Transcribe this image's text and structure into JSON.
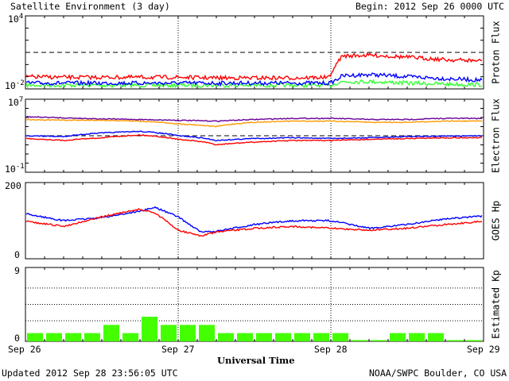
{
  "header": {
    "title": "Satellite Environment (3 day)",
    "begin": "Begin:  2012 Sep 26 0000 UTC"
  },
  "footer": {
    "updated": "Updated 2012 Sep 28 23:56:05 UTC",
    "credit": "NOAA/SWPC Boulder, CO USA"
  },
  "colors": {
    "red": "#ff0000",
    "blue": "#0000ff",
    "green": "#33ff33",
    "orange": "#ff9900",
    "purple": "#660099",
    "bar": "#44ff00"
  },
  "chart_data": [
    {
      "type": "line",
      "ylabel": "Proton Flux",
      "scale": "log",
      "ylim": [
        0.01,
        10000
      ],
      "ytick_labels": {
        "top_base": "10",
        "top_exp": "4",
        "bottom_base": "10",
        "bottom_exp": "-2"
      },
      "x_days": [
        0,
        0.25,
        0.5,
        0.75,
        1.0,
        1.25,
        1.5,
        1.75,
        2.0,
        2.04,
        2.08,
        2.25,
        2.5,
        2.75,
        3.0
      ],
      "series": [
        {
          "color": "red",
          "values": [
            0.1,
            0.09,
            0.09,
            0.09,
            0.09,
            0.08,
            0.08,
            0.08,
            0.09,
            1.0,
            5.0,
            6.0,
            4.0,
            2.5,
            2.0
          ]
        },
        {
          "color": "blue",
          "values": [
            0.03,
            0.03,
            0.03,
            0.03,
            0.03,
            0.03,
            0.03,
            0.03,
            0.03,
            0.06,
            0.12,
            0.15,
            0.1,
            0.07,
            0.05
          ]
        },
        {
          "color": "green",
          "values": [
            0.02,
            0.02,
            0.02,
            0.02,
            0.02,
            0.02,
            0.02,
            0.02,
            0.02,
            0.03,
            0.04,
            0.04,
            0.03,
            0.025,
            0.022
          ]
        }
      ],
      "threshold": 10
    },
    {
      "type": "line",
      "ylabel": "Electron Flux",
      "scale": "log",
      "ylim": [
        0.1,
        10000000
      ],
      "ytick_labels": {
        "top_base": "10",
        "top_exp": "7",
        "bottom_base": "10",
        "bottom_exp": "-1"
      },
      "x_days": [
        0,
        0.25,
        0.5,
        0.75,
        1.0,
        1.25,
        1.5,
        1.75,
        2.0,
        2.25,
        2.5,
        2.75,
        3.0
      ],
      "series": [
        {
          "color": "purple",
          "values": [
            120000,
            90000,
            70000,
            60000,
            50000,
            40000,
            60000,
            80000,
            80000,
            60000,
            60000,
            80000,
            80000
          ]
        },
        {
          "color": "orange",
          "values": [
            60000,
            50000,
            50000,
            40000,
            20000,
            10000,
            30000,
            40000,
            40000,
            30000,
            30000,
            40000,
            40000
          ]
        },
        {
          "color": "blue",
          "values": [
            1000,
            800,
            2000,
            3000,
            1000,
            300,
            500,
            600,
            500,
            600,
            800,
            900,
            1000
          ]
        },
        {
          "color": "red",
          "values": [
            500,
            300,
            600,
            1200,
            400,
            100,
            200,
            300,
            300,
            400,
            500,
            600,
            600
          ]
        }
      ],
      "threshold": 1000
    },
    {
      "type": "line",
      "ylabel": "GOES Hp",
      "ylim": [
        0,
        200
      ],
      "ytick_labels": {
        "top": "200",
        "bottom": "0"
      },
      "x_days": [
        0,
        0.25,
        0.5,
        0.75,
        0.85,
        1.0,
        1.15,
        1.25,
        1.5,
        1.75,
        2.0,
        2.25,
        2.5,
        2.75,
        3.0
      ],
      "series": [
        {
          "color": "blue",
          "values": [
            118,
            100,
            108,
            125,
            135,
            110,
            70,
            72,
            90,
            100,
            100,
            80,
            90,
            105,
            112
          ]
        },
        {
          "color": "red",
          "values": [
            98,
            85,
            110,
            130,
            120,
            75,
            60,
            70,
            80,
            85,
            80,
            75,
            80,
            90,
            98
          ]
        }
      ]
    },
    {
      "type": "bar",
      "ylabel": "Estimated Kp",
      "ylim": [
        0,
        9
      ],
      "ytick_labels": {
        "top": "9",
        "bottom": "0"
      },
      "categories_per_day": 8,
      "values": [
        1,
        1,
        1,
        1,
        2,
        1,
        3,
        2,
        2,
        2,
        1,
        1,
        1,
        1,
        1,
        1,
        1,
        0,
        0,
        1,
        1,
        1,
        0,
        0
      ],
      "levels": [
        2.5,
        4.5,
        6.5
      ]
    }
  ],
  "x_axis": {
    "tick_labels": [
      "Sep 26",
      "Sep 27",
      "Sep 28",
      "Sep 29"
    ],
    "label": "Universal Time"
  }
}
